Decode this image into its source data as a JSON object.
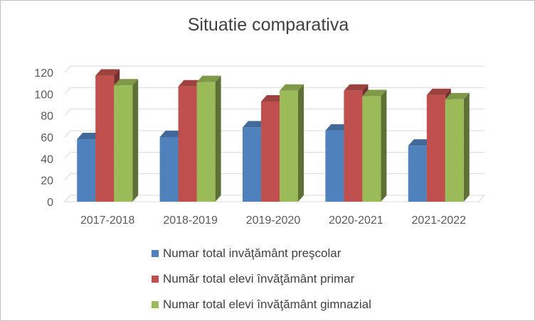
{
  "chart_data": {
    "type": "bar",
    "title": "Situatie comparativa",
    "categories": [
      "2017-2018",
      "2018-2019",
      "2019-2020",
      "2020-2021",
      "2021-2022"
    ],
    "series": [
      {
        "name": "Numar total invăţământ preşcolar",
        "values": [
          58,
          60,
          69,
          66,
          52
        ],
        "color": "#4f81bd"
      },
      {
        "name": "Număr total elevi învăţământ primar",
        "values": [
          117,
          107,
          93,
          103,
          99
        ],
        "color": "#c0504d"
      },
      {
        "name": "Numar total elevi învăţământ gimnazial",
        "values": [
          108,
          111,
          103,
          98,
          95
        ],
        "color": "#9bbb59"
      }
    ],
    "ylim": [
      0,
      120
    ],
    "yticks": [
      "0",
      "20",
      "40",
      "60",
      "80",
      "100",
      "120"
    ],
    "grid": true,
    "legend_position": "bottom",
    "style": "3d-clustered-column"
  }
}
